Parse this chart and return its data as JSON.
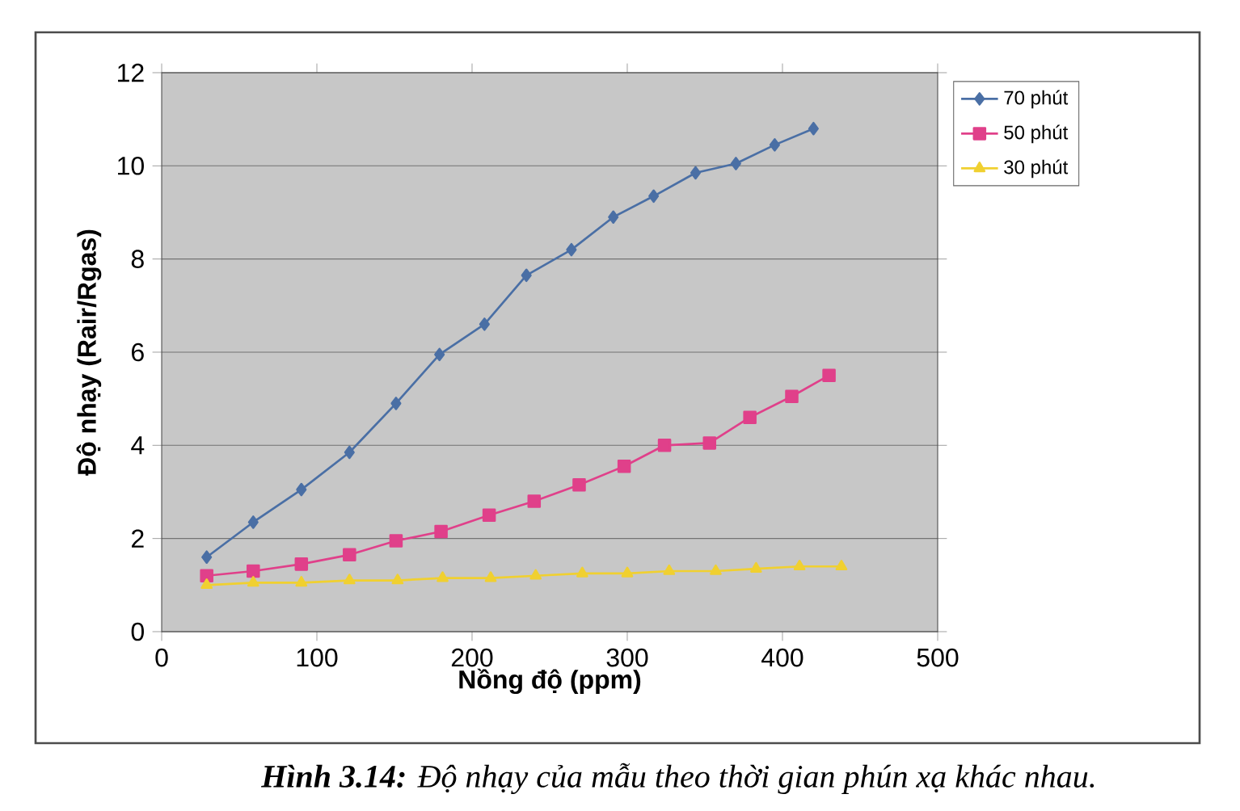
{
  "chart_data": {
    "type": "line",
    "xlabel": "Nồng độ (ppm)",
    "ylabel": "Độ nhạy (Rair/Rgas)",
    "xlim": [
      0,
      500
    ],
    "xticks": [
      0,
      100,
      200,
      300,
      400,
      500
    ],
    "ylim": [
      0,
      12
    ],
    "yticks": [
      0,
      2,
      4,
      6,
      8,
      10,
      12
    ],
    "grid": "y",
    "legend": "top right",
    "line_style": "solid",
    "series": [
      {
        "name": "70 phút",
        "color": "#4a6fa5",
        "marker": "diamond",
        "x": [
          29,
          59,
          90,
          121,
          151,
          179,
          208,
          235,
          264,
          291,
          317,
          344,
          370,
          395,
          420
        ],
        "values": [
          1.6,
          2.35,
          3.05,
          3.85,
          4.9,
          5.95,
          6.6,
          7.65,
          8.2,
          8.9,
          9.35,
          9.85,
          10.05,
          10.45,
          10.8
        ]
      },
      {
        "name": "50 phút",
        "color": "#e0408a",
        "marker": "square",
        "x": [
          29,
          59,
          90,
          121,
          151,
          180,
          211,
          240,
          269,
          298,
          324,
          353,
          379,
          406,
          430
        ],
        "values": [
          1.2,
          1.3,
          1.45,
          1.65,
          1.95,
          2.15,
          2.5,
          2.8,
          3.15,
          3.55,
          4.0,
          4.05,
          4.6,
          5.05,
          5.5
        ]
      },
      {
        "name": "30 phút",
        "color": "#f0d030",
        "marker": "triangle",
        "x": [
          29,
          59,
          90,
          121,
          152,
          181,
          212,
          241,
          271,
          300,
          327,
          357,
          383,
          411,
          438
        ],
        "values": [
          1.0,
          1.05,
          1.05,
          1.1,
          1.1,
          1.15,
          1.15,
          1.2,
          1.25,
          1.25,
          1.3,
          1.3,
          1.35,
          1.4,
          1.4
        ]
      }
    ],
    "annotations": [
      "**Hình 3.14:** Độ nhạy của mẫu theo thời gian phún xạ khác nhau."
    ]
  }
}
